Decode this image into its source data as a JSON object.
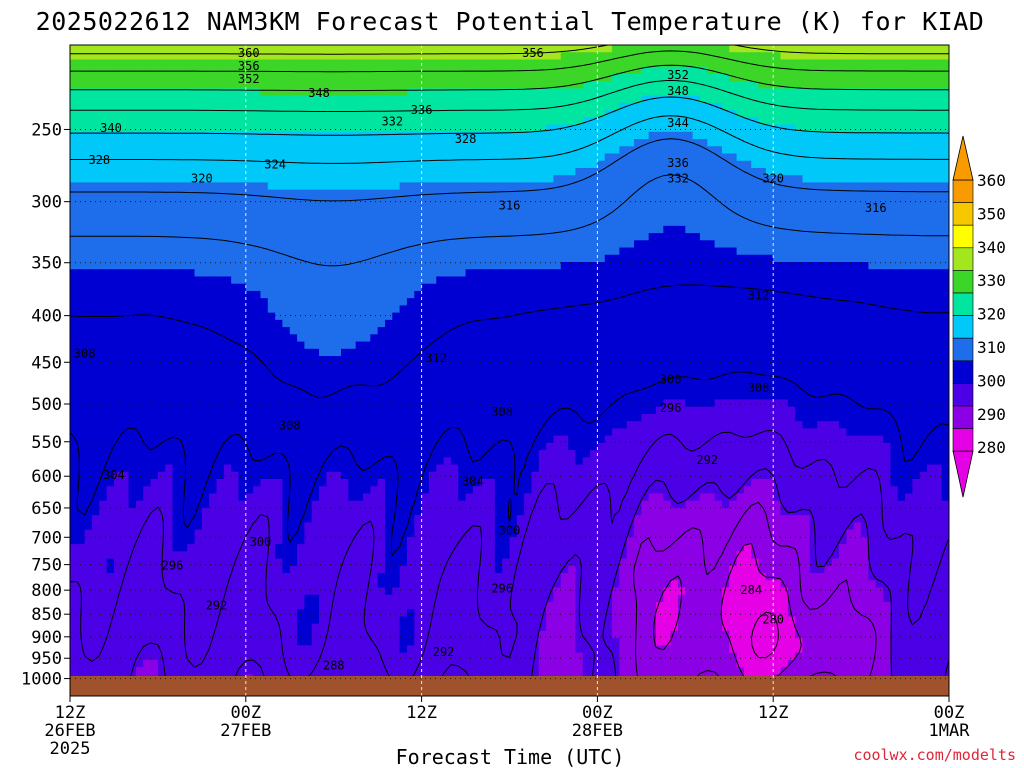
{
  "chart_data": {
    "type": "heatmap",
    "title": "2025022612 NAM3KM Forecast Potential Temperature (K) for KIAD",
    "xlabel": "Forecast Time (UTC)",
    "ylabel": "",
    "y_levels": [
      250,
      300,
      350,
      400,
      450,
      500,
      550,
      600,
      650,
      700,
      750,
      800,
      850,
      900,
      950,
      1000
    ],
    "y_scale": "log-pressure (inverted)",
    "ylim": [
      1045,
      202
    ],
    "x_ticks": [
      {
        "hours": 0,
        "l1": "12Z",
        "l2": "26FEB",
        "l3": "2025"
      },
      {
        "hours": 12,
        "l1": "00Z",
        "l2": "27FEB",
        "l3": ""
      },
      {
        "hours": 24,
        "l1": "12Z",
        "l2": "",
        "l3": ""
      },
      {
        "hours": 36,
        "l1": "00Z",
        "l2": "28FEB",
        "l3": ""
      },
      {
        "hours": 48,
        "l1": "12Z",
        "l2": "",
        "l3": ""
      },
      {
        "hours": 60,
        "l1": "00Z",
        "l2": "1MAR",
        "l3": ""
      }
    ],
    "xlim": [
      0,
      60
    ],
    "colorbar": {
      "levels": [
        280,
        290,
        300,
        310,
        320,
        330,
        340,
        350,
        360
      ],
      "colors": [
        "#e600e6",
        "#8c00e6",
        "#4b00e6",
        "#0000d2",
        "#1e6eeb",
        "#00c8f8",
        "#00e6a0",
        "#3cd628",
        "#a4e61e",
        "#ffff00",
        "#f6c800",
        "#f99b00"
      ]
    },
    "contour_labels": [
      {
        "t": 12.2,
        "p": 206,
        "v": "360"
      },
      {
        "t": 12.2,
        "p": 213,
        "v": "356"
      },
      {
        "t": 12.2,
        "p": 220,
        "v": "352"
      },
      {
        "t": 17.0,
        "p": 228,
        "v": "348"
      },
      {
        "t": 31.6,
        "p": 206,
        "v": "356"
      },
      {
        "t": 41.5,
        "p": 218,
        "v": "352"
      },
      {
        "t": 41.5,
        "p": 227,
        "v": "348"
      },
      {
        "t": 41.5,
        "p": 246,
        "v": "344"
      },
      {
        "t": 2.8,
        "p": 249,
        "v": "340"
      },
      {
        "t": 22.0,
        "p": 245,
        "v": "332"
      },
      {
        "t": 24.0,
        "p": 238,
        "v": "336"
      },
      {
        "t": 27.0,
        "p": 256,
        "v": "328"
      },
      {
        "t": 41.5,
        "p": 272,
        "v": "336"
      },
      {
        "t": 41.5,
        "p": 283,
        "v": "332"
      },
      {
        "t": 2.0,
        "p": 270,
        "v": "328"
      },
      {
        "t": 14.0,
        "p": 273,
        "v": "324"
      },
      {
        "t": 9.0,
        "p": 283,
        "v": "320"
      },
      {
        "t": 48.0,
        "p": 283,
        "v": "320"
      },
      {
        "t": 30.0,
        "p": 303,
        "v": "316"
      },
      {
        "t": 55.0,
        "p": 305,
        "v": "316"
      },
      {
        "t": 47.0,
        "p": 380,
        "v": "312"
      },
      {
        "t": 25.0,
        "p": 445,
        "v": "312"
      },
      {
        "t": 1.0,
        "p": 440,
        "v": "308"
      },
      {
        "t": 15.0,
        "p": 528,
        "v": "308"
      },
      {
        "t": 29.5,
        "p": 510,
        "v": "308"
      },
      {
        "t": 47.0,
        "p": 480,
        "v": "308"
      },
      {
        "t": 41.0,
        "p": 470,
        "v": "300"
      },
      {
        "t": 41.0,
        "p": 505,
        "v": "296"
      },
      {
        "t": 43.5,
        "p": 576,
        "v": "292"
      },
      {
        "t": 3.0,
        "p": 598,
        "v": "304"
      },
      {
        "t": 27.5,
        "p": 608,
        "v": "304"
      },
      {
        "t": 13.0,
        "p": 708,
        "v": "300"
      },
      {
        "t": 30.0,
        "p": 688,
        "v": "300"
      },
      {
        "t": 7.0,
        "p": 752,
        "v": "296"
      },
      {
        "t": 29.5,
        "p": 797,
        "v": "296"
      },
      {
        "t": 10.0,
        "p": 832,
        "v": "292"
      },
      {
        "t": 25.5,
        "p": 935,
        "v": "292"
      },
      {
        "t": 18.0,
        "p": 968,
        "v": "288"
      },
      {
        "t": 46.5,
        "p": 800,
        "v": "284"
      },
      {
        "t": 48.0,
        "p": 862,
        "v": "280"
      }
    ]
  },
  "credit": "coolwx.com/modelts",
  "surface_color": "#a0522d"
}
